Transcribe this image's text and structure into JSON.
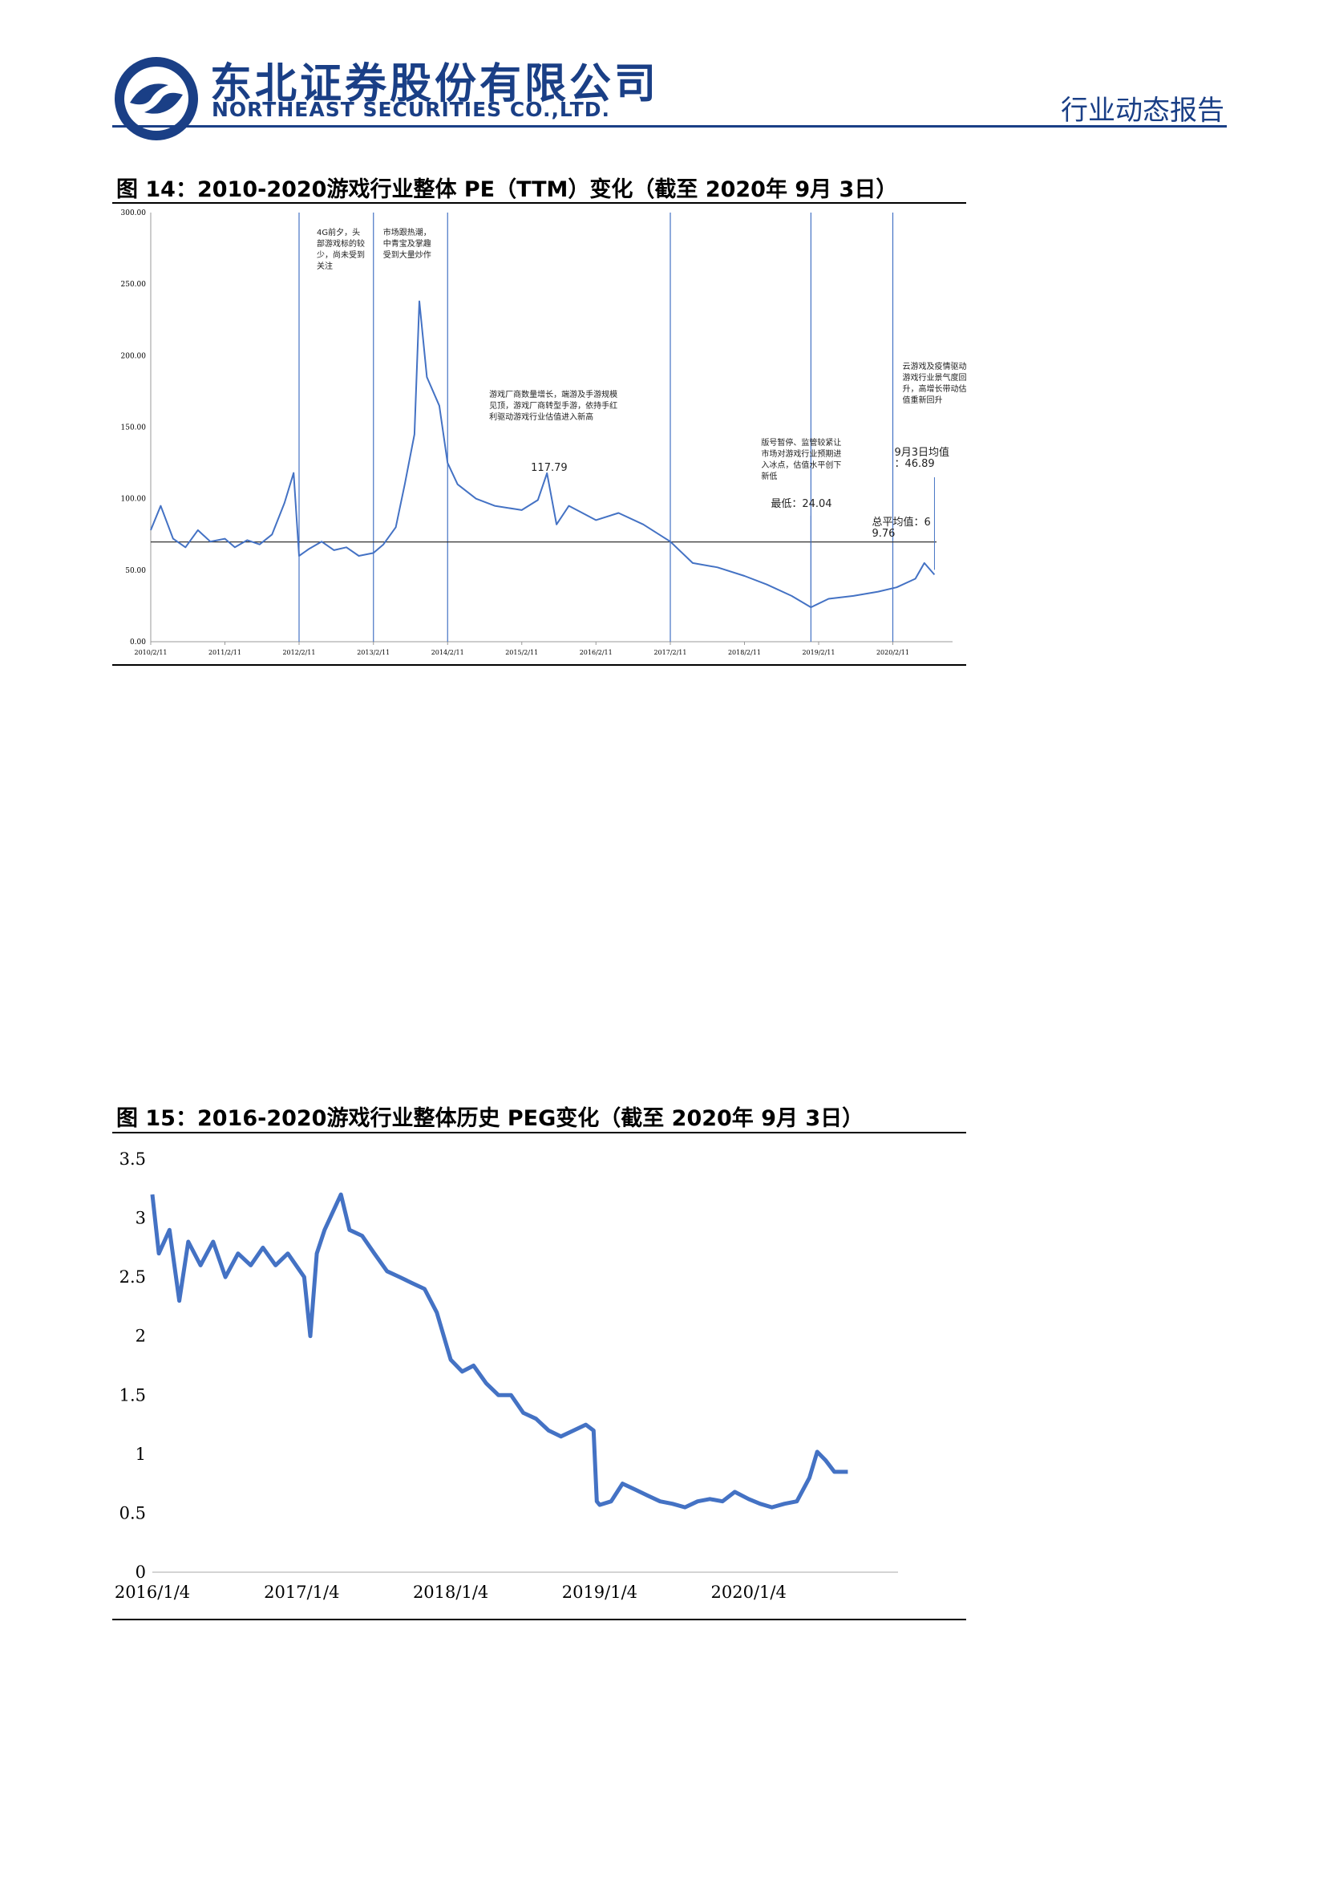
{
  "header": {
    "company_cn": "东北证券股份有限公司",
    "company_en": "NORTHEAST SECURITIES CO.,LTD.",
    "report_type": "行业动态报告",
    "brand_color": "#1a3f86"
  },
  "figure14": {
    "title": "图 14：2010-2020游戏行业整体 PE（TTM）变化（截至 2020年 9月 3日）"
  },
  "figure15": {
    "title": "图 15：2016-2020游戏行业整体历史 PEG变化（截至 2020年 9月 3日）"
  },
  "chart_data": [
    {
      "type": "line",
      "title": "",
      "xlabel": "",
      "ylabel": "",
      "ylim": [
        0,
        300
      ],
      "yticks": [
        "0.00",
        "50.00",
        "100.00",
        "150.00",
        "200.00",
        "250.00",
        "300.00"
      ],
      "xtick_labels": [
        "2010/2/11",
        "2011/2/11",
        "2012/2/11",
        "2013/2/11",
        "2014/2/11",
        "2015/2/11",
        "2016/2/11",
        "2017/2/11",
        "2018/2/11",
        "2019/2/11",
        "2020/2/11"
      ],
      "series": [
        {
          "color": "#4472c4",
          "points": [
            [
              "2010-02-11",
              78
            ],
            [
              "2010-04-01",
              95
            ],
            [
              "2010-06-01",
              72
            ],
            [
              "2010-08-01",
              66
            ],
            [
              "2010-10-01",
              78
            ],
            [
              "2010-12-01",
              70
            ],
            [
              "2011-02-11",
              72
            ],
            [
              "2011-04-01",
              66
            ],
            [
              "2011-06-01",
              71
            ],
            [
              "2011-08-01",
              68
            ],
            [
              "2011-10-01",
              75
            ],
            [
              "2011-12-01",
              97
            ],
            [
              "2012-01-15",
              118
            ],
            [
              "2012-02-11",
              60
            ],
            [
              "2012-04-01",
              65
            ],
            [
              "2012-06-01",
              70
            ],
            [
              "2012-08-01",
              64
            ],
            [
              "2012-10-01",
              66
            ],
            [
              "2012-12-01",
              60
            ],
            [
              "2013-02-11",
              62
            ],
            [
              "2013-04-01",
              68
            ],
            [
              "2013-06-01",
              80
            ],
            [
              "2013-07-15",
              110
            ],
            [
              "2013-09-01",
              145
            ],
            [
              "2013-09-25",
              238
            ],
            [
              "2013-11-01",
              185
            ],
            [
              "2014-01-01",
              165
            ],
            [
              "2014-02-11",
              125
            ],
            [
              "2014-04-01",
              110
            ],
            [
              "2014-07-01",
              100
            ],
            [
              "2014-10-01",
              95
            ],
            [
              "2015-02-11",
              92
            ],
            [
              "2015-05-01",
              99
            ],
            [
              "2015-06-15",
              117.79
            ],
            [
              "2015-08-01",
              82
            ],
            [
              "2015-10-01",
              95
            ],
            [
              "2016-02-11",
              85
            ],
            [
              "2016-06-01",
              90
            ],
            [
              "2016-10-01",
              82
            ],
            [
              "2017-02-11",
              70
            ],
            [
              "2017-06-01",
              55
            ],
            [
              "2017-10-01",
              52
            ],
            [
              "2018-02-11",
              46
            ],
            [
              "2018-06-01",
              40
            ],
            [
              "2018-10-01",
              32
            ],
            [
              "2019-01-04",
              24.04
            ],
            [
              "2019-04-01",
              30
            ],
            [
              "2019-08-01",
              32
            ],
            [
              "2019-12-01",
              35
            ],
            [
              "2020-03-01",
              38
            ],
            [
              "2020-06-01",
              44
            ],
            [
              "2020-07-15",
              55
            ],
            [
              "2020-09-03",
              46.89
            ]
          ]
        }
      ],
      "average_line": {
        "value": 69.76
      },
      "event_dates": [
        "2012-02-11",
        "2013-02-11",
        "2014-02-11",
        "2017-02-11",
        "2019-01-04",
        "2020-02-11"
      ],
      "annotations": [
        {
          "text": "4G前夕，头部游戏标的较少，尚未受到关注",
          "anchor_date": "2012-02-11"
        },
        {
          "text": "市场跟热潮，中青宝及掌趣受到大量炒作",
          "anchor_date": "2013-02-11"
        },
        {
          "text": "游戏厂商数量增长，端游及手游规模见顶，游戏厂商转型手游，依持手红利驱动游戏行业估值进入新高",
          "anchor_date": "2015-06-15"
        },
        {
          "text": "117.79",
          "anchor_date": "2015-06-15"
        },
        {
          "text": "版号暂停、监管较紧让市场对游戏行业预期进入冰点，估值水平创下新低",
          "anchor_date": "2019-01-04"
        },
        {
          "text": "最低：24.04",
          "anchor_date": "2019-01-04"
        },
        {
          "text": "云游戏及疫情驱动游戏行业景气度回升，高增长带动估值重新回升",
          "anchor_date": "2020-02-11"
        },
        {
          "text": "9月3日均值：46.89",
          "anchor_date": "2020-09-03"
        },
        {
          "text": "总平均值：69.76",
          "anchor_date": "2020-09-03"
        }
      ]
    },
    {
      "type": "line",
      "title": "",
      "xlabel": "",
      "ylabel": "",
      "ylim": [
        0,
        3.5
      ],
      "yticks": [
        "0",
        "0.5",
        "1",
        "1.5",
        "2",
        "2.5",
        "3",
        "3.5"
      ],
      "xtick_labels": [
        "2016/1/4",
        "2017/1/4",
        "2018/1/4",
        "2019/1/4",
        "2020/1/4"
      ],
      "series": [
        {
          "color": "#4472c4",
          "points": [
            [
              "2016-01-04",
              3.2
            ],
            [
              "2016-01-20",
              2.7
            ],
            [
              "2016-02-15",
              2.9
            ],
            [
              "2016-03-10",
              2.3
            ],
            [
              "2016-04-01",
              2.8
            ],
            [
              "2016-05-01",
              2.6
            ],
            [
              "2016-06-01",
              2.8
            ],
            [
              "2016-07-01",
              2.5
            ],
            [
              "2016-08-01",
              2.7
            ],
            [
              "2016-09-01",
              2.6
            ],
            [
              "2016-10-01",
              2.75
            ],
            [
              "2016-11-01",
              2.6
            ],
            [
              "2016-12-01",
              2.7
            ],
            [
              "2017-01-10",
              2.5
            ],
            [
              "2017-01-25",
              2.0
            ],
            [
              "2017-02-10",
              2.7
            ],
            [
              "2017-03-01",
              2.9
            ],
            [
              "2017-04-10",
              3.2
            ],
            [
              "2017-05-01",
              2.9
            ],
            [
              "2017-06-01",
              2.85
            ],
            [
              "2017-07-01",
              2.7
            ],
            [
              "2017-08-01",
              2.55
            ],
            [
              "2017-09-01",
              2.5
            ],
            [
              "2017-10-01",
              2.45
            ],
            [
              "2017-11-01",
              2.4
            ],
            [
              "2017-12-01",
              2.2
            ],
            [
              "2018-01-04",
              1.8
            ],
            [
              "2018-02-01",
              1.7
            ],
            [
              "2018-03-01",
              1.75
            ],
            [
              "2018-04-01",
              1.6
            ],
            [
              "2018-05-01",
              1.5
            ],
            [
              "2018-06-01",
              1.5
            ],
            [
              "2018-07-01",
              1.35
            ],
            [
              "2018-08-01",
              1.3
            ],
            [
              "2018-09-01",
              1.2
            ],
            [
              "2018-10-01",
              1.15
            ],
            [
              "2018-11-01",
              1.2
            ],
            [
              "2018-12-01",
              1.25
            ],
            [
              "2018-12-20",
              1.2
            ],
            [
              "2018-12-28",
              0.6
            ],
            [
              "2019-01-04",
              0.57
            ],
            [
              "2019-02-01",
              0.6
            ],
            [
              "2019-03-01",
              0.75
            ],
            [
              "2019-04-01",
              0.7
            ],
            [
              "2019-05-01",
              0.65
            ],
            [
              "2019-06-01",
              0.6
            ],
            [
              "2019-07-01",
              0.58
            ],
            [
              "2019-08-01",
              0.55
            ],
            [
              "2019-09-01",
              0.6
            ],
            [
              "2019-10-01",
              0.62
            ],
            [
              "2019-11-01",
              0.6
            ],
            [
              "2019-12-01",
              0.68
            ],
            [
              "2020-01-04",
              0.62
            ],
            [
              "2020-02-01",
              0.58
            ],
            [
              "2020-03-01",
              0.55
            ],
            [
              "2020-04-01",
              0.58
            ],
            [
              "2020-05-01",
              0.6
            ],
            [
              "2020-06-01",
              0.8
            ],
            [
              "2020-06-20",
              1.02
            ],
            [
              "2020-07-10",
              0.95
            ],
            [
              "2020-08-01",
              0.85
            ],
            [
              "2020-09-03",
              0.85
            ]
          ]
        }
      ]
    }
  ]
}
